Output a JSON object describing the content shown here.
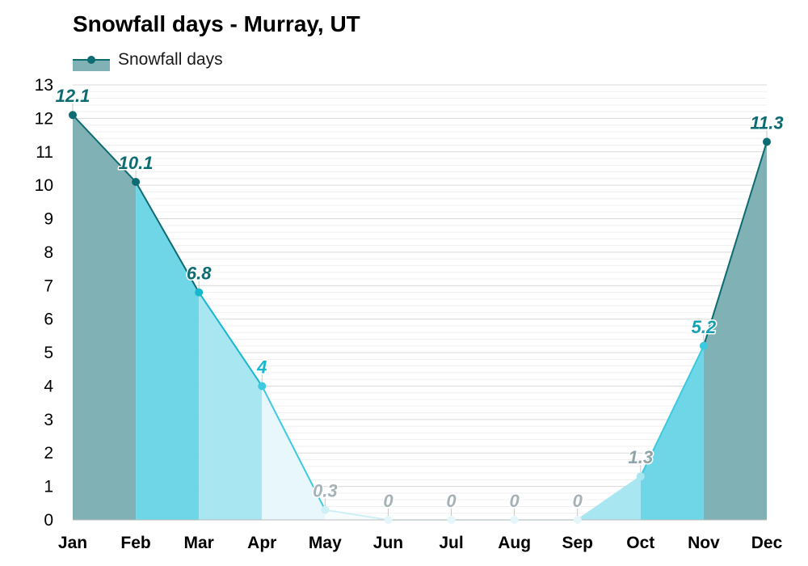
{
  "chart_data": {
    "type": "area",
    "title": "Snowfall days - Murray, UT",
    "xlabel": "",
    "ylabel": "",
    "categories": [
      "Jan",
      "Feb",
      "Mar",
      "Apr",
      "May",
      "Jun",
      "Jul",
      "Aug",
      "Sep",
      "Oct",
      "Nov",
      "Dec"
    ],
    "series": [
      {
        "name": "Snowfall days",
        "values": [
          12.1,
          10.1,
          6.8,
          4,
          0.3,
          0,
          0,
          0,
          0,
          1.3,
          5.2,
          11.3
        ]
      }
    ],
    "data_labels": [
      "12.1",
      "10.1",
      "6.8",
      "4",
      "0.3",
      "0",
      "0",
      "0",
      "0",
      "1.3",
      "5.2",
      "11.3"
    ],
    "ylim": [
      0,
      13
    ],
    "yticks": [
      0,
      1,
      2,
      3,
      4,
      5,
      6,
      7,
      8,
      9,
      10,
      11,
      12,
      13
    ],
    "grid": true,
    "legend_position": "top-left",
    "colors": {
      "legend_fill": "#7fb1b5",
      "legend_line": "#0d6c72",
      "grid_major": "#d9d9d9",
      "grid_minor": "#efefef",
      "axis": "#bbbbbb",
      "month_fills": [
        "#7fb1b5",
        "#6fd6e8",
        "#a8e6f1",
        "#e7f7fb",
        "#f7fcfd",
        "#ffffff",
        "#ffffff",
        "#ffffff",
        "#e7f7fb",
        "#a8e6f1",
        "#6fd6e8",
        "#7fb1b5"
      ],
      "month_markers": [
        "#0d6c72",
        "#0d6c72",
        "#15b8cc",
        "#3dcae0",
        "#cfeff6",
        "#e4f6fa",
        "#e4f6fa",
        "#e4f6fa",
        "#e4f6fa",
        "#a8e6f1",
        "#3dcae0",
        "#0d6c72"
      ],
      "month_labels": [
        "#0d6c72",
        "#0d6c72",
        "#0d6c72",
        "#15b8cc",
        "#a6b2b6",
        "#a6b2b6",
        "#a6b2b6",
        "#a6b2b6",
        "#a6b2b6",
        "#8fa3a8",
        "#15a0b4",
        "#0d6c72"
      ]
    }
  }
}
